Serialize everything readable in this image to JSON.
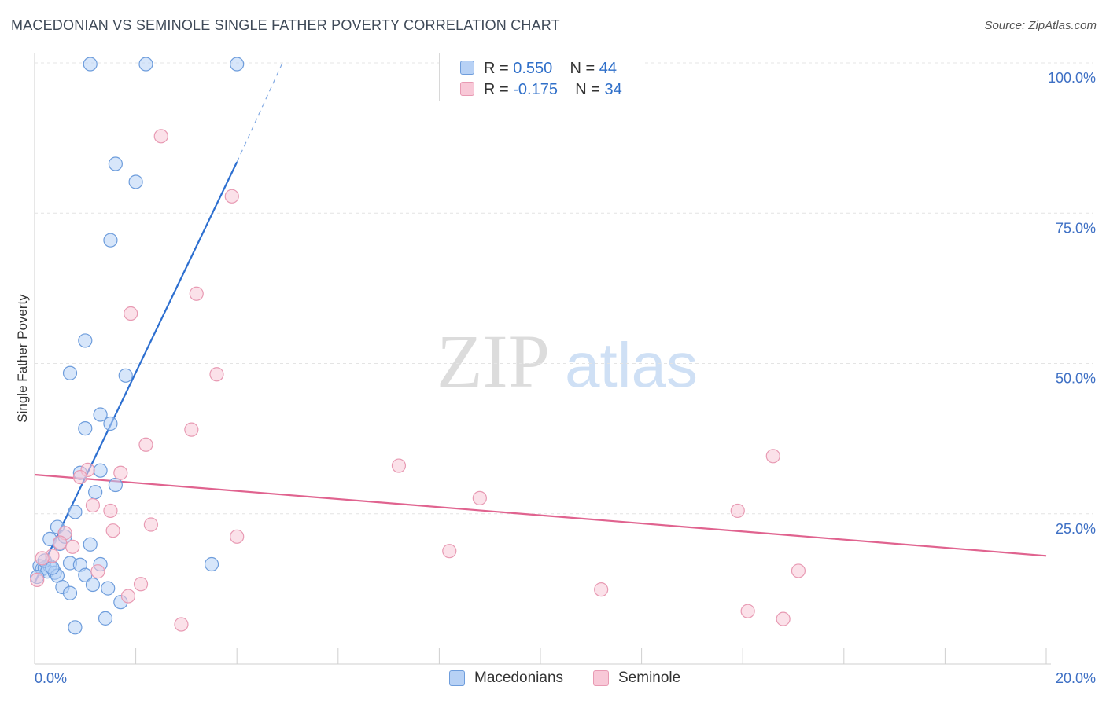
{
  "title": "MACEDONIAN VS SEMINOLE SINGLE FATHER POVERTY CORRELATION CHART",
  "source": "Source: ZipAtlas.com",
  "watermark": {
    "zip": "ZIP",
    "atlas": "atlas"
  },
  "colors": {
    "blue_fill": "#b7d1f5",
    "blue_stroke": "#6e9ddc",
    "blue_line": "#2d6fd0",
    "pink_fill": "#f8c8d7",
    "pink_stroke": "#e89ab3",
    "pink_line": "#e0638f",
    "axis_text": "#3d6fc4",
    "grid": "#e4e4e4"
  },
  "legend_top": [
    {
      "r_label": "R = ",
      "r_value": "0.550",
      "n_label": "N = ",
      "n_value": "44"
    },
    {
      "r_label": "R = ",
      "r_value": "-0.175",
      "n_label": "N = ",
      "n_value": "34"
    }
  ],
  "legend_bottom": [
    "Macedonians",
    "Seminole"
  ],
  "chart_data": {
    "type": "scatter",
    "title": "MACEDONIAN VS SEMINOLE SINGLE FATHER POVERTY CORRELATION CHART",
    "ylabel": "Single Father Poverty",
    "xlabel": "",
    "xlim": [
      0,
      20
    ],
    "ylim": [
      0,
      100
    ],
    "x_tick_labels": [
      "0.0%",
      "20.0%"
    ],
    "y_tick_labels": [
      "25.0%",
      "50.0%",
      "75.0%",
      "100.0%"
    ],
    "y_ticks": [
      25,
      50,
      75,
      100
    ],
    "grid": true,
    "legend_placement": "top-center",
    "series": [
      {
        "name": "Macedonians",
        "r": 0.55,
        "n": 44,
        "trend": {
          "x": [
            0,
            4.0
          ],
          "y": [
            13.5,
            83.5
          ],
          "dashed_to": [
            4.9,
            100
          ]
        },
        "points": [
          [
            1.1,
            99.8
          ],
          [
            2.2,
            99.8
          ],
          [
            4.0,
            99.8
          ],
          [
            1.6,
            83.2
          ],
          [
            2.0,
            80.2
          ],
          [
            1.5,
            70.5
          ],
          [
            1.0,
            53.8
          ],
          [
            0.7,
            48.4
          ],
          [
            1.8,
            48.0
          ],
          [
            1.3,
            41.5
          ],
          [
            1.0,
            39.2
          ],
          [
            1.5,
            40.0
          ],
          [
            0.9,
            31.8
          ],
          [
            1.3,
            32.2
          ],
          [
            1.2,
            28.6
          ],
          [
            1.6,
            29.8
          ],
          [
            0.8,
            25.3
          ],
          [
            0.45,
            22.8
          ],
          [
            0.3,
            20.8
          ],
          [
            0.5,
            20.0
          ],
          [
            1.1,
            19.9
          ],
          [
            0.1,
            16.3
          ],
          [
            0.15,
            15.8
          ],
          [
            0.2,
            16.0
          ],
          [
            0.3,
            16.3
          ],
          [
            0.25,
            15.4
          ],
          [
            0.4,
            15.2
          ],
          [
            0.45,
            14.7
          ],
          [
            0.7,
            16.8
          ],
          [
            0.9,
            16.5
          ],
          [
            1.3,
            16.6
          ],
          [
            1.0,
            14.8
          ],
          [
            0.55,
            12.8
          ],
          [
            0.7,
            11.8
          ],
          [
            1.15,
            13.2
          ],
          [
            1.45,
            12.6
          ],
          [
            1.7,
            10.3
          ],
          [
            1.4,
            7.6
          ],
          [
            0.8,
            6.1
          ],
          [
            3.5,
            16.6
          ],
          [
            0.05,
            14.5
          ],
          [
            0.2,
            17.2
          ],
          [
            0.6,
            21.2
          ],
          [
            0.35,
            16.0
          ]
        ]
      },
      {
        "name": "Seminole",
        "r": -0.175,
        "n": 34,
        "trend": {
          "x": [
            0,
            20
          ],
          "y": [
            31.5,
            18.0
          ]
        },
        "points": [
          [
            2.5,
            87.8
          ],
          [
            3.9,
            77.8
          ],
          [
            3.2,
            61.6
          ],
          [
            1.9,
            58.3
          ],
          [
            3.6,
            48.2
          ],
          [
            3.1,
            39.0
          ],
          [
            2.2,
            36.5
          ],
          [
            1.05,
            32.3
          ],
          [
            1.7,
            31.8
          ],
          [
            0.9,
            31.1
          ],
          [
            1.15,
            26.4
          ],
          [
            1.5,
            25.5
          ],
          [
            2.3,
            23.2
          ],
          [
            1.55,
            22.2
          ],
          [
            0.6,
            21.8
          ],
          [
            4.0,
            21.2
          ],
          [
            0.75,
            19.5
          ],
          [
            0.35,
            18.0
          ],
          [
            0.15,
            17.6
          ],
          [
            1.25,
            15.4
          ],
          [
            2.1,
            13.3
          ],
          [
            1.85,
            11.3
          ],
          [
            2.9,
            6.6
          ],
          [
            0.05,
            14.0
          ],
          [
            7.2,
            33.0
          ],
          [
            8.8,
            27.6
          ],
          [
            8.2,
            18.8
          ],
          [
            11.2,
            12.4
          ],
          [
            13.9,
            25.5
          ],
          [
            14.1,
            8.8
          ],
          [
            14.6,
            34.6
          ],
          [
            14.8,
            7.5
          ],
          [
            15.1,
            15.5
          ],
          [
            0.5,
            20.2
          ]
        ]
      }
    ]
  }
}
